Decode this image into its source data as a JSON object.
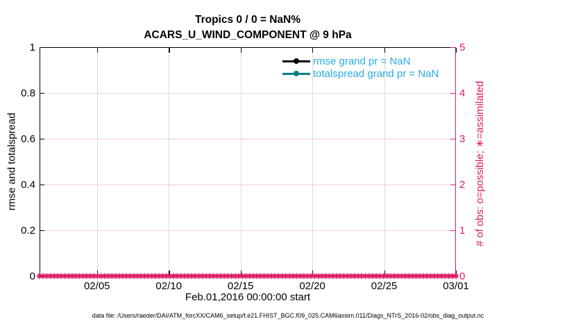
{
  "figure": {
    "title_line1": "Tropics 0 / 0 = NaN%",
    "title_line2": "ACARS_U_WIND_COMPONENT @ 9 hPa",
    "footer": "data file: /Users/raeder/DAI/ATM_forcXX/CAM6_setup/f.e21.FHIST_BGC.f09_025.CAM6assim.011/Diags_NTrS_2016-02/obs_diag_output.nc"
  },
  "chart_data": {
    "type": "line",
    "title": "Tropics 0 / 0 = NaN%",
    "subtitle": "ACARS_U_WIND_COMPONENT @ 9 hPa",
    "xlabel": "Feb.01,2016 00:00:00 start",
    "x_axis": {
      "start": "Feb.01,2016 00:00:00",
      "total_days": 29,
      "ticks": [
        {
          "label": "02/05",
          "day": 4
        },
        {
          "label": "02/10",
          "day": 9
        },
        {
          "label": "02/15",
          "day": 14
        },
        {
          "label": "02/20",
          "day": 19
        },
        {
          "label": "02/25",
          "day": 24
        },
        {
          "label": "03/01",
          "day": 29
        }
      ]
    },
    "left_axis": {
      "label": "rmse and totalspread",
      "range": [
        0,
        1
      ],
      "color": "#000000",
      "ticks": [
        {
          "v": 0,
          "label": "0"
        },
        {
          "v": 0.2,
          "label": "0.2"
        },
        {
          "v": 0.4,
          "label": "0.4"
        },
        {
          "v": 0.6,
          "label": "0.6"
        },
        {
          "v": 0.8,
          "label": "0.8"
        },
        {
          "v": 1,
          "label": "1"
        }
      ]
    },
    "right_axis": {
      "label": "# of obs: o=possible; ∗=assimilated",
      "range": [
        0,
        5
      ],
      "color": "#DE1B64",
      "ticks": [
        {
          "v": 0,
          "label": "0"
        },
        {
          "v": 1,
          "label": "1"
        },
        {
          "v": 2,
          "label": "2"
        },
        {
          "v": 3,
          "label": "3"
        },
        {
          "v": 4,
          "label": "4"
        },
        {
          "v": 5,
          "label": "5"
        }
      ]
    },
    "series": [
      {
        "name": "rmse grand pr = NaN",
        "color": "#000000",
        "axis": "left",
        "values": []
      },
      {
        "name": "totalspread grand pr = NaN",
        "color": "#008080",
        "axis": "left",
        "values": []
      },
      {
        "name": "obs assimilated",
        "marker": "*",
        "color": "#DE1B64",
        "axis": "right",
        "constant_value": 0,
        "count": 116
      }
    ],
    "legend": {
      "position": "top-right",
      "text_color": "#29AAE3",
      "entries": [
        {
          "label": "rmse grand pr = NaN",
          "color": "#000000"
        },
        {
          "label": "totalspread grand pr = NaN",
          "color": "#008080"
        }
      ]
    },
    "grid": {
      "horizontal_color": "#F5CEDD",
      "vertical_color": "#DBDBDB"
    }
  }
}
